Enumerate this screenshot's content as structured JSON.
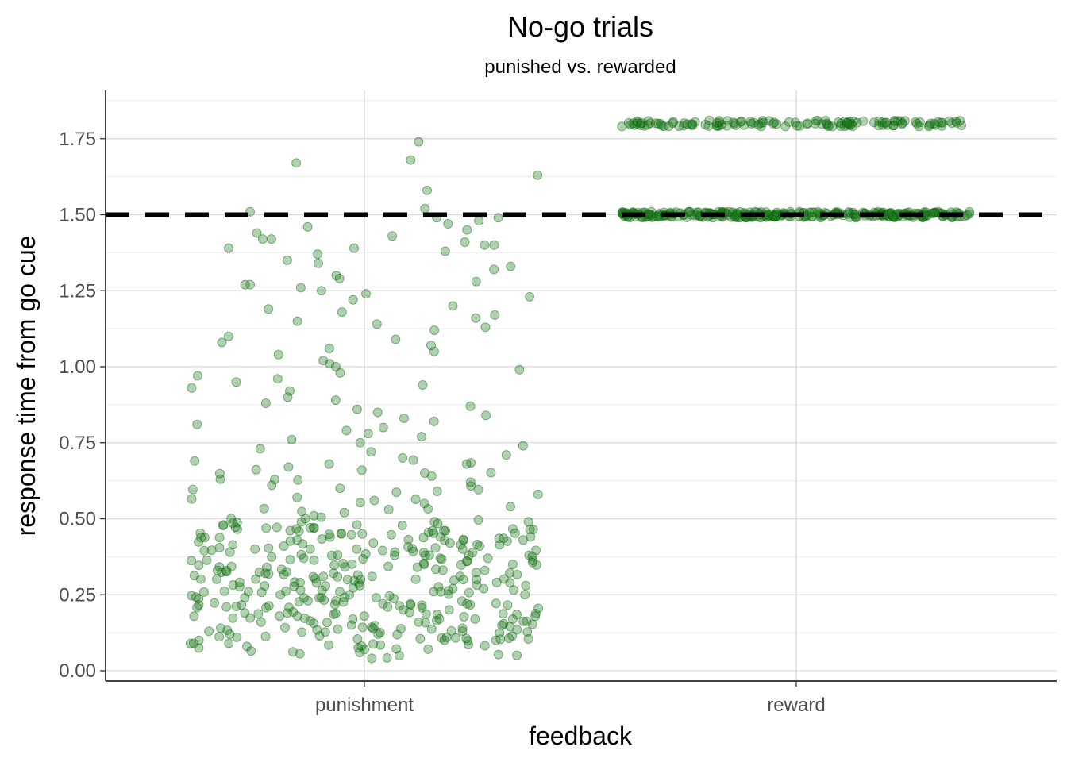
{
  "chart_data": {
    "type": "scatter",
    "title": "No-go trials",
    "subtitle": "punished vs. rewarded",
    "xlabel": "feedback",
    "ylabel": "response time from go cue",
    "categories": [
      "punishment",
      "reward"
    ],
    "ylim": [
      -0.06,
      1.9
    ],
    "yticks": [
      0.0,
      0.25,
      0.5,
      0.75,
      1.0,
      1.25,
      1.5,
      1.75
    ],
    "ytick_labels": [
      "0.00",
      "0.25",
      "0.50",
      "0.75",
      "1.00",
      "1.25",
      "1.50",
      "1.75"
    ],
    "reference_line": {
      "y": 1.5,
      "style": "dashed",
      "color": "#000000"
    },
    "point_color": "#1a7a1a",
    "grid": true,
    "series": [
      {
        "category": "punishment",
        "y": [
          1.74,
          1.67,
          1.68,
          1.63,
          1.58,
          1.52,
          1.51,
          1.49,
          1.49,
          1.48,
          1.47,
          1.46,
          1.45,
          1.44,
          1.43,
          1.42,
          1.42,
          1.41,
          1.4,
          1.4,
          1.39,
          1.39,
          1.38,
          1.37,
          1.35,
          1.34,
          1.33,
          1.32,
          1.3,
          1.29,
          1.28,
          1.27,
          1.27,
          1.26,
          1.25,
          1.24,
          1.23,
          1.22,
          1.2,
          1.19,
          1.18,
          1.17,
          1.16,
          1.15,
          1.14,
          1.13,
          1.12,
          1.1,
          1.09,
          1.08,
          1.07,
          1.06,
          1.05,
          1.04,
          1.02,
          1.01,
          1.0,
          0.99,
          0.98,
          0.97,
          0.96,
          0.95,
          0.94,
          0.93,
          0.92,
          0.9,
          0.89,
          0.88,
          0.87,
          0.86,
          0.85,
          0.84,
          0.83,
          0.82,
          0.81,
          0.8,
          0.79,
          0.78,
          0.77,
          0.76,
          0.75,
          0.74,
          0.73,
          0.72,
          0.71,
          0.7,
          0.69,
          0.68,
          0.67,
          0.66,
          0.65,
          0.64,
          0.63,
          0.62,
          0.61,
          0.6,
          0.59,
          0.58,
          0.57,
          0.56,
          0.55,
          0.54,
          0.53,
          0.52,
          0.51,
          0.5,
          0.49,
          0.48,
          0.48,
          0.47,
          0.47,
          0.46,
          0.46,
          0.45,
          0.45,
          0.44,
          0.44,
          0.43,
          0.43,
          0.42,
          0.42,
          0.41,
          0.41,
          0.4,
          0.4,
          0.39,
          0.39,
          0.38,
          0.38,
          0.37,
          0.37,
          0.36,
          0.36,
          0.35,
          0.35,
          0.34,
          0.34,
          0.33,
          0.33,
          0.32,
          0.32,
          0.31,
          0.31,
          0.3,
          0.3,
          0.29,
          0.29,
          0.28,
          0.28,
          0.27,
          0.27,
          0.26,
          0.26,
          0.25,
          0.25,
          0.24,
          0.24,
          0.23,
          0.23,
          0.22,
          0.22,
          0.21,
          0.21,
          0.2,
          0.2,
          0.19,
          0.19,
          0.18,
          0.18,
          0.17,
          0.17,
          0.16,
          0.16,
          0.15,
          0.15,
          0.14,
          0.14,
          0.13,
          0.13,
          0.12,
          0.12,
          0.11,
          0.11,
          0.1,
          0.1,
          0.09,
          0.09,
          0.08,
          0.07,
          0.06,
          0.05
        ]
      },
      {
        "category": "reward",
        "y": [
          1.8,
          1.5
        ]
      }
    ]
  }
}
